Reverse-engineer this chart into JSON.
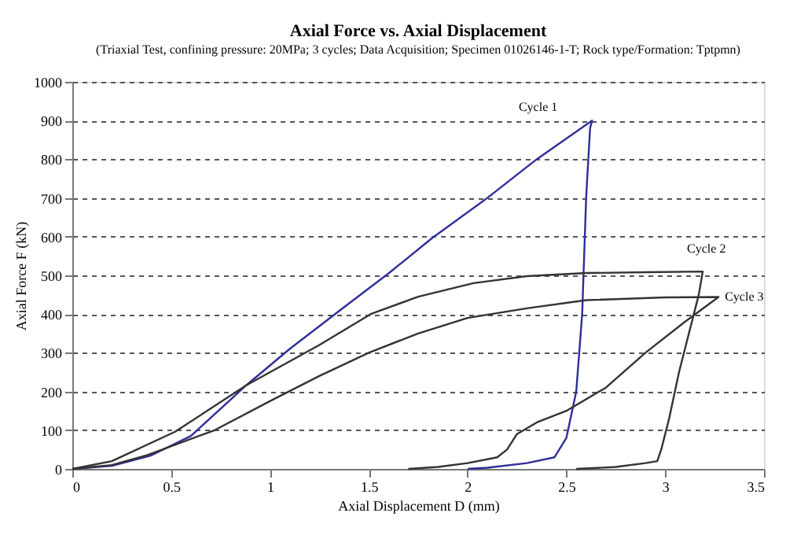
{
  "chart_data": {
    "type": "line",
    "title": "Axial Force vs. Axial Displacement",
    "subtitle": "(Triaxial Test, confining pressure: 20MPa; 3 cycles; Data Acquisition; Specimen 01026146-1-T; Rock type/Formation: Tptpmn)",
    "xlabel": "Axial Displacement D (mm)",
    "ylabel": "Axial Force F (kN)",
    "xlim": [
      0,
      3.5
    ],
    "ylim": [
      0,
      1000
    ],
    "xticks": [
      0,
      0.5,
      1,
      1.5,
      2,
      2.5,
      3,
      3.5
    ],
    "yticks": [
      0,
      100,
      200,
      300,
      400,
      500,
      600,
      700,
      800,
      900,
      1000
    ],
    "grid": "y",
    "marker": "none",
    "line_style": "solid",
    "series": [
      {
        "name": "Cycle 1",
        "color": "#2e2e9a",
        "x": [
          0,
          0.2,
          0.4,
          0.6,
          0.88,
          1.1,
          1.35,
          1.6,
          1.82,
          2.1,
          2.35,
          2.63,
          2.62,
          2.6,
          2.58,
          2.55,
          2.5,
          2.44,
          2.3,
          2.1,
          2.0
        ],
        "values": [
          0,
          8,
          35,
          85,
          216,
          310,
          408,
          505,
          596,
          700,
          800,
          900,
          880,
          700,
          400,
          200,
          80,
          30,
          15,
          3,
          0
        ]
      },
      {
        "name": "Cycle 2",
        "color": "#333333",
        "x": [
          0,
          0.2,
          0.52,
          0.88,
          1.25,
          1.51,
          1.75,
          2.03,
          2.3,
          2.6,
          2.9,
          3.19,
          3.17,
          3.12,
          3.07,
          3.02,
          2.98,
          2.96,
          2.9,
          2.75,
          2.55
        ],
        "values": [
          0,
          20,
          96,
          216,
          320,
          400,
          445,
          480,
          498,
          506,
          508,
          510,
          450,
          350,
          250,
          130,
          50,
          20,
          15,
          5,
          0
        ]
      },
      {
        "name": "Cycle 3",
        "color": "#333333",
        "x": [
          0,
          0.2,
          0.38,
          0.72,
          1.0,
          1.25,
          1.5,
          1.75,
          2.0,
          2.3,
          2.6,
          3.0,
          3.27,
          3.1,
          2.9,
          2.7,
          2.5,
          2.35,
          2.25,
          2.2,
          2.15,
          2.0,
          1.85,
          1.7
        ],
        "values": [
          0,
          10,
          36,
          100,
          175,
          240,
          300,
          350,
          390,
          415,
          436,
          443,
          444,
          380,
          300,
          210,
          150,
          120,
          90,
          50,
          30,
          15,
          5,
          0
        ]
      }
    ]
  }
}
